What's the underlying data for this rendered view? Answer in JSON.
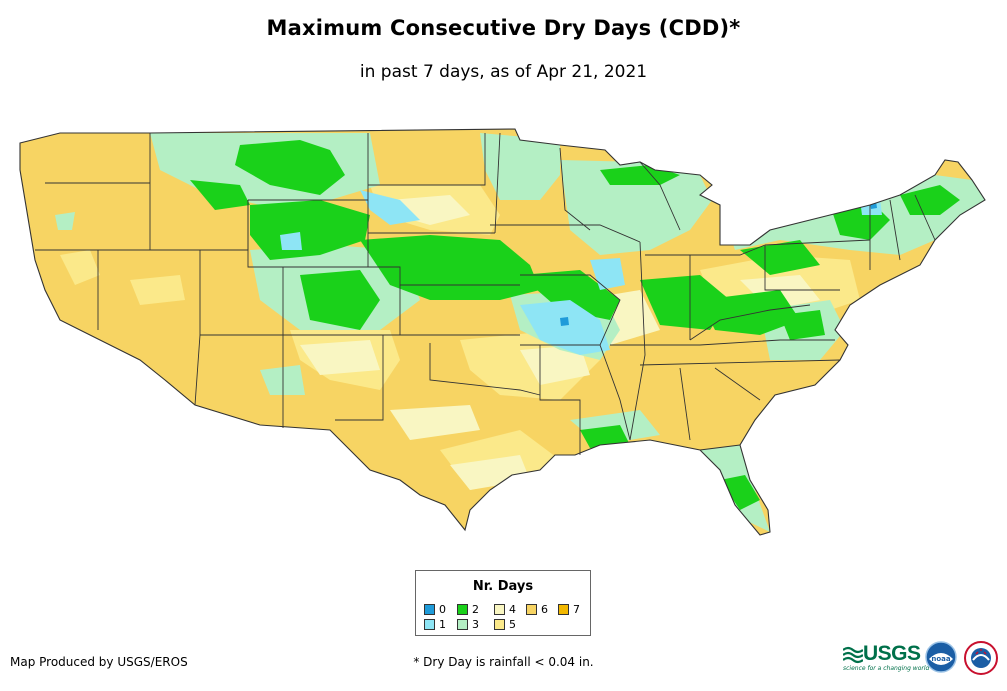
{
  "header": {
    "title": "Maximum Consecutive Dry Days (CDD)*",
    "subtitle": "in past 7 days, as of Apr 21, 2021"
  },
  "legend": {
    "title": "Nr. Days",
    "items": [
      {
        "label": "0",
        "color": "#1f9bd9"
      },
      {
        "label": "1",
        "color": "#8ee5f5"
      },
      {
        "label": "2",
        "color": "#1ad11a"
      },
      {
        "label": "3",
        "color": "#b4efc4"
      },
      {
        "label": "4",
        "color": "#f9f6c2"
      },
      {
        "label": "5",
        "color": "#fbe98a"
      },
      {
        "label": "6",
        "color": "#f7d463"
      },
      {
        "label": "7",
        "color": "#f2b800"
      }
    ]
  },
  "footer": {
    "credit": "Map Produced by USGS/EROS",
    "footnote": "* Dry Day is rainfall < 0.04 in.",
    "usgs_word": "USGS",
    "usgs_tagline": "science for a changing world",
    "noaa_text": "noaa"
  },
  "colors": {
    "state_border": "#333333",
    "usgs_green": "#00704a",
    "noaa_blue": "#1b5ea5"
  }
}
